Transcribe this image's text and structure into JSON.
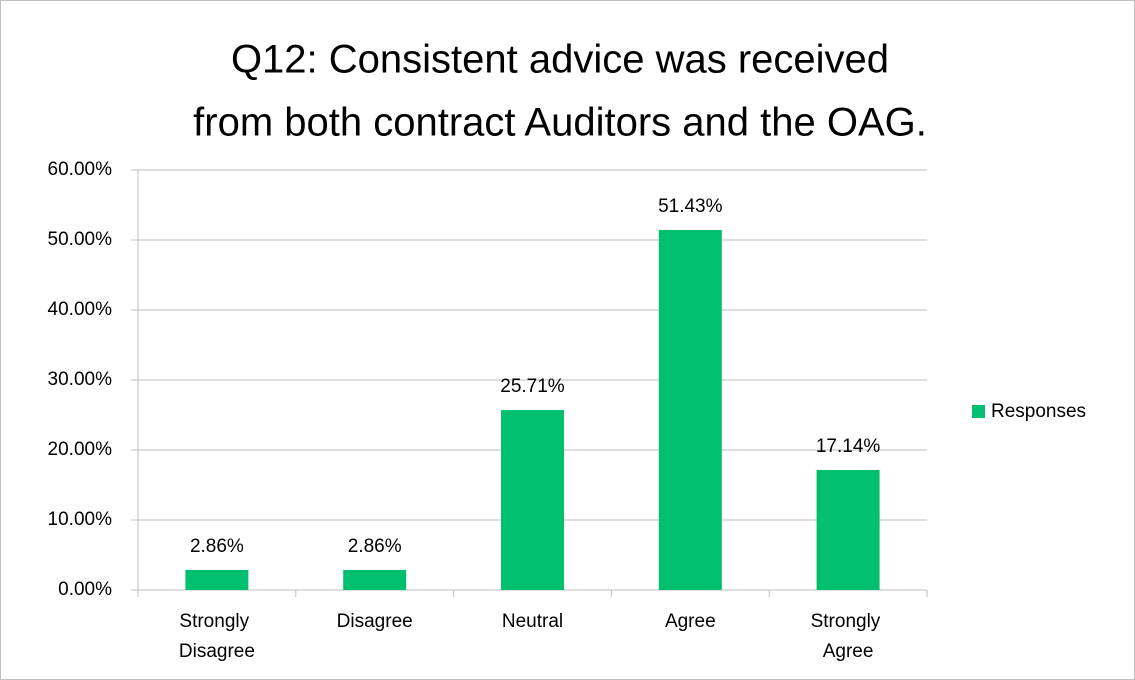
{
  "chart_data": {
    "type": "bar",
    "title": [
      "Q12: Consistent advice was received",
      "from both contract Auditors and the OAG."
    ],
    "categories": [
      "Strongly Disagree",
      "Disagree",
      "Neutral",
      "Agree",
      "Strongly Agree"
    ],
    "series": [
      {
        "name": "Responses",
        "color": "#00c070",
        "values": [
          2.86,
          2.86,
          25.71,
          51.43,
          17.14
        ],
        "value_labels": [
          "2.86%",
          "2.86%",
          "25.71%",
          "51.43%",
          "17.14%"
        ]
      }
    ],
    "ylim": [
      0,
      60
    ],
    "yticks": [
      {
        "value": 0,
        "label": "0.00%"
      },
      {
        "value": 10,
        "label": "10.00%"
      },
      {
        "value": 20,
        "label": "20.00%"
      },
      {
        "value": 30,
        "label": "30.00%"
      },
      {
        "value": 40,
        "label": "40.00%"
      },
      {
        "value": 50,
        "label": "50.00%"
      },
      {
        "value": 60,
        "label": "60.00%"
      }
    ],
    "grid": true,
    "legend": "right"
  }
}
